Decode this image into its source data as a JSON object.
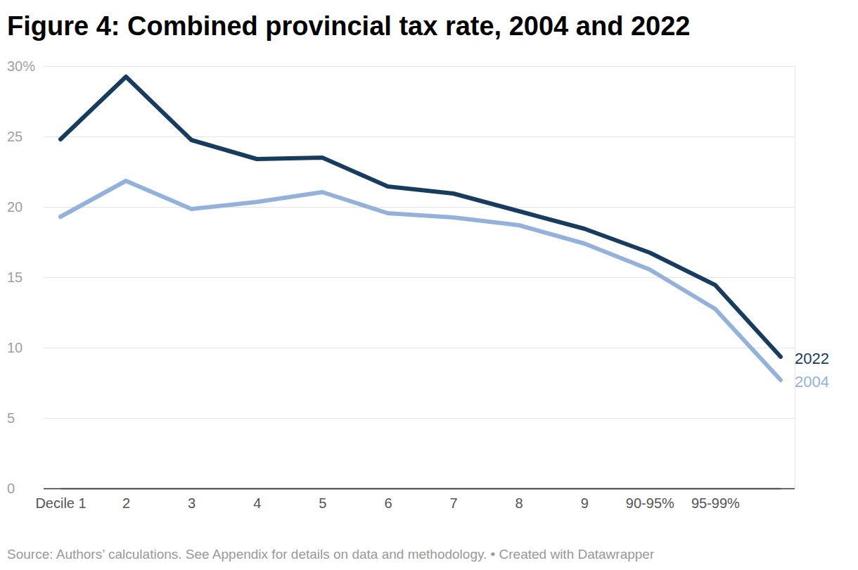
{
  "chart_data": {
    "type": "line",
    "title": "Figure 4: Combined provincial tax rate, 2004 and 2022",
    "source": "Source: Authors’ calculations. See Appendix for details on data and methodology. • Created with Datawrapper",
    "categories": [
      "Decile 1",
      "2",
      "3",
      "4",
      "5",
      "6",
      "7",
      "8",
      "9",
      "90-95%",
      "95-99%",
      null
    ],
    "series": [
      {
        "name": "2022",
        "color": "#173c5e",
        "values": [
          24.8,
          29.25,
          24.75,
          23.4,
          23.5,
          21.45,
          20.95,
          19.7,
          18.45,
          16.75,
          14.45,
          9.35
        ]
      },
      {
        "name": "2004",
        "color": "#94b1db",
        "values": [
          19.3,
          21.85,
          19.85,
          20.35,
          21.05,
          19.55,
          19.25,
          18.7,
          17.4,
          15.55,
          12.75,
          7.7
        ]
      }
    ],
    "ylim": [
      0,
      30
    ],
    "yticks": [
      0,
      5,
      10,
      15,
      20,
      25,
      {
        "value": 30,
        "label": "30%"
      }
    ],
    "grid": true
  }
}
